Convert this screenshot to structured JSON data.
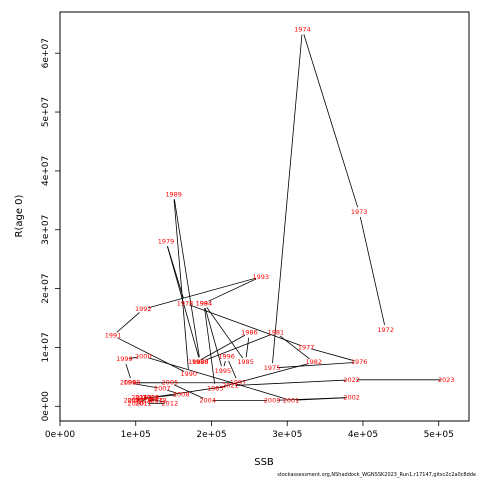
{
  "footer": "stockassessment.org,NShaddock_WGNSSK2023_Run1,r17147,gitsc2c2a0c8dde",
  "chart_data": {
    "type": "line",
    "title": "",
    "xlabel": "SSB",
    "ylabel": "R(age 0)",
    "xlim": [
      0,
      540000
    ],
    "ylim": [
      -2500000,
      67000000
    ],
    "grid": false,
    "xticks": [
      {
        "value": 0,
        "label": "0e+00"
      },
      {
        "value": 100000,
        "label": "1e+05"
      },
      {
        "value": 200000,
        "label": "2e+05"
      },
      {
        "value": 300000,
        "label": "3e+05"
      },
      {
        "value": 400000,
        "label": "4e+05"
      },
      {
        "value": 500000,
        "label": "5e+05"
      }
    ],
    "yticks": [
      {
        "value": 0,
        "label": "0e+00"
      },
      {
        "value": 10000000,
        "label": "1e+07"
      },
      {
        "value": 20000000,
        "label": "2e+07"
      },
      {
        "value": 30000000,
        "label": "3e+07"
      },
      {
        "value": 40000000,
        "label": "4e+07"
      },
      {
        "value": 50000000,
        "label": "5e+07"
      },
      {
        "value": 60000000,
        "label": "6e+07"
      }
    ],
    "points": [
      {
        "label": "1972",
        "x": 430000,
        "y": 13000000
      },
      {
        "label": "1973",
        "x": 395000,
        "y": 33000000
      },
      {
        "label": "1974",
        "x": 320000,
        "y": 64000000
      },
      {
        "label": "1975",
        "x": 280000,
        "y": 6500000
      },
      {
        "label": "1976",
        "x": 395000,
        "y": 7500000
      },
      {
        "label": "1977",
        "x": 325000,
        "y": 10000000
      },
      {
        "label": "1978",
        "x": 165000,
        "y": 17500000
      },
      {
        "label": "1979",
        "x": 140000,
        "y": 28000000
      },
      {
        "label": "1980",
        "x": 185000,
        "y": 7500000
      },
      {
        "label": "1981",
        "x": 285000,
        "y": 12500000
      },
      {
        "label": "1982",
        "x": 335000,
        "y": 7500000
      },
      {
        "label": "1983",
        "x": 205000,
        "y": 3000000
      },
      {
        "label": "1984",
        "x": 190000,
        "y": 17500000
      },
      {
        "label": "1985",
        "x": 245000,
        "y": 7500000
      },
      {
        "label": "1986",
        "x": 250000,
        "y": 12500000
      },
      {
        "label": "1987",
        "x": 180000,
        "y": 7500000
      },
      {
        "label": "1988",
        "x": 185000,
        "y": 7500000
      },
      {
        "label": "1989",
        "x": 150000,
        "y": 36000000
      },
      {
        "label": "1990",
        "x": 170000,
        "y": 5500000
      },
      {
        "label": "1991",
        "x": 70000,
        "y": 12000000
      },
      {
        "label": "1992",
        "x": 110000,
        "y": 16500000
      },
      {
        "label": "1993",
        "x": 265000,
        "y": 22000000
      },
      {
        "label": "1994",
        "x": 190000,
        "y": 17500000
      },
      {
        "label": "1995",
        "x": 215000,
        "y": 6000000
      },
      {
        "label": "1996",
        "x": 220000,
        "y": 8500000
      },
      {
        "label": "1997",
        "x": 235000,
        "y": 4000000
      },
      {
        "label": "1998",
        "x": 95000,
        "y": 4000000
      },
      {
        "label": "1999",
        "x": 85000,
        "y": 8000000
      },
      {
        "label": "2000",
        "x": 110000,
        "y": 8500000
      },
      {
        "label": "2001",
        "x": 305000,
        "y": 1000000
      },
      {
        "label": "2002",
        "x": 385000,
        "y": 1500000
      },
      {
        "label": "2003",
        "x": 280000,
        "y": 1000000
      },
      {
        "label": "2004",
        "x": 195000,
        "y": 1000000
      },
      {
        "label": "2005",
        "x": 145000,
        "y": 4000000
      },
      {
        "label": "2006",
        "x": 90000,
        "y": 4000000
      },
      {
        "label": "2007",
        "x": 135000,
        "y": 3000000
      },
      {
        "label": "2008",
        "x": 160000,
        "y": 2000000
      },
      {
        "label": "2009",
        "x": 120000,
        "y": 1500000
      },
      {
        "label": "2010",
        "x": 100000,
        "y": 500000
      },
      {
        "label": "2011",
        "x": 110000,
        "y": 500000
      },
      {
        "label": "2012",
        "x": 145000,
        "y": 500000
      },
      {
        "label": "2013",
        "x": 110000,
        "y": 1500000
      },
      {
        "label": "2014",
        "x": 100000,
        "y": 1000000
      },
      {
        "label": "2015",
        "x": 105000,
        "y": 1500000
      },
      {
        "label": "2016",
        "x": 120000,
        "y": 1500000
      },
      {
        "label": "2017",
        "x": 125000,
        "y": 1000000
      },
      {
        "label": "2018",
        "x": 130000,
        "y": 1000000
      },
      {
        "label": "2019",
        "x": 110000,
        "y": 1000000
      },
      {
        "label": "2020",
        "x": 95000,
        "y": 1000000
      },
      {
        "label": "2021",
        "x": 225000,
        "y": 3500000
      },
      {
        "label": "2022",
        "x": 385000,
        "y": 4500000
      },
      {
        "label": "2023",
        "x": 510000,
        "y": 4500000
      }
    ]
  }
}
